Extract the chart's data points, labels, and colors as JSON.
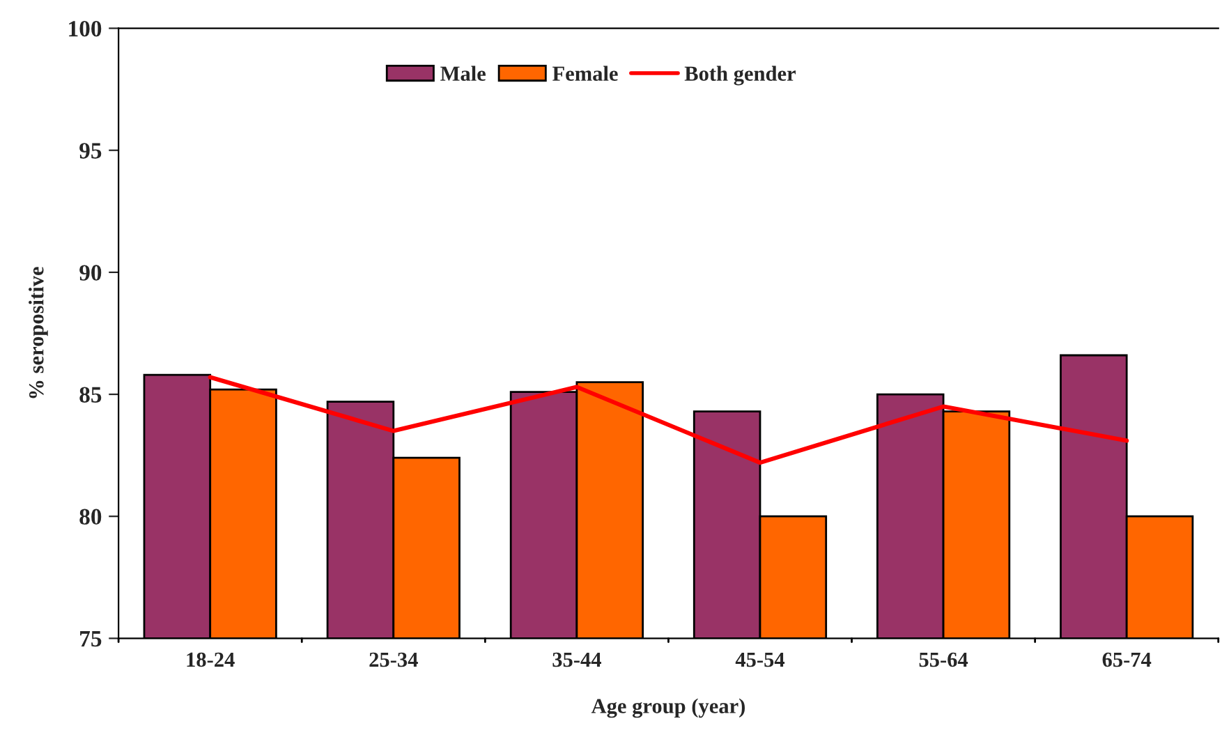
{
  "chart_data": {
    "type": "bar",
    "categories": [
      "18-24",
      "25-34",
      "35-44",
      "45-54",
      "55-64",
      "65-74"
    ],
    "xlabel": "Age group (year)",
    "ylabel": "% seropositive",
    "series": [
      {
        "name": "Male",
        "color": "#993366",
        "values": [
          85.8,
          84.7,
          85.1,
          84.3,
          85.0,
          86.6
        ]
      },
      {
        "name": "Female",
        "color": "#ff6600",
        "values": [
          85.2,
          82.4,
          85.5,
          80.0,
          84.3,
          80.0
        ]
      },
      {
        "name": "Both gender",
        "type": "line",
        "color": "#ff0000",
        "values": [
          85.7,
          83.5,
          85.3,
          82.2,
          84.5,
          83.1
        ]
      }
    ],
    "ylim": [
      75,
      100
    ],
    "yticks": [
      75,
      80,
      85,
      90,
      95,
      100
    ],
    "grid": false,
    "legend": "top",
    "marker": "none",
    "line_style": "solid"
  }
}
